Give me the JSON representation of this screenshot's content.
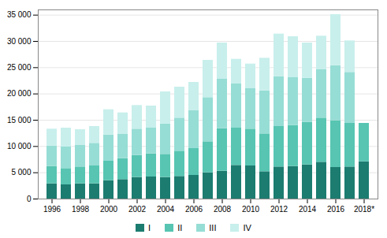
{
  "chart_data": {
    "type": "bar",
    "stacked": true,
    "grid": true,
    "legend": "bottom",
    "categories": [
      "1996",
      null,
      "1998",
      null,
      "2000",
      null,
      "2002",
      null,
      "2004",
      null,
      "2006",
      null,
      "2008",
      null,
      "2010",
      null,
      "2012",
      null,
      "2014",
      null,
      "2016",
      null,
      "2018*"
    ],
    "series": [
      {
        "name": "I",
        "color": "#1c7c70",
        "values": [
          2900,
          2700,
          2900,
          2900,
          3500,
          3700,
          4100,
          4200,
          4100,
          4300,
          4500,
          5000,
          5300,
          6400,
          6300,
          5200,
          6100,
          6200,
          6500,
          7000,
          6000,
          6100,
          7100
        ]
      },
      {
        "name": "II",
        "color": "#57c5b2",
        "values": [
          3300,
          3100,
          3200,
          3400,
          3700,
          4000,
          4200,
          4400,
          4400,
          4800,
          5100,
          5900,
          8100,
          7100,
          7000,
          7200,
          7700,
          7800,
          8100,
          8400,
          8900,
          8300,
          7300
        ]
      },
      {
        "name": "III",
        "color": "#96ddd5",
        "values": [
          3900,
          4100,
          4100,
          4300,
          5000,
          4600,
          5000,
          4900,
          5800,
          6300,
          7200,
          8400,
          9400,
          8400,
          7700,
          8200,
          9500,
          9100,
          8400,
          9200,
          10500,
          9700,
          0
        ]
      },
      {
        "name": "IV",
        "color": "#c8efec",
        "values": [
          3200,
          3600,
          3000,
          3200,
          4800,
          4100,
          4500,
          4200,
          6100,
          5900,
          5400,
          7100,
          6900,
          4700,
          4700,
          6200,
          8100,
          7800,
          6700,
          6400,
          9700,
          6000,
          0
        ]
      }
    ],
    "ylim": [
      0,
      36000
    ],
    "yticks": [
      0,
      {
        "value": 5000,
        "label": "5 000"
      },
      {
        "value": 10000,
        "label": "10 000"
      },
      {
        "value": 15000,
        "label": "15 000"
      },
      {
        "value": 20000,
        "label": "20 000"
      },
      {
        "value": 25000,
        "label": "25 000"
      },
      {
        "value": 30000,
        "label": "30 000"
      },
      {
        "value": 35000,
        "label": "35 000"
      }
    ]
  }
}
